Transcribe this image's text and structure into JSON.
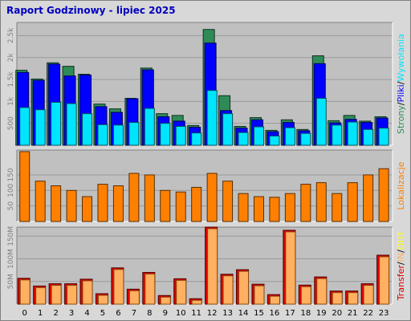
{
  "title": "Raport Godzinowy -  lipiec 2025",
  "colors": {
    "frame_bg": "#d8d8d8",
    "panel_bg": "#c0c0c0",
    "strony": "#2e8b57",
    "pliki": "#0000ff",
    "wywolania": "#00e5ff",
    "lokalizacje": "#ff8000",
    "transfer_in": "#ffb060",
    "transfer_out": "#ffff00",
    "transfer": "#e00000"
  },
  "chart_data": [
    {
      "type": "bar",
      "id": "requests",
      "categories": [
        "0",
        "1",
        "2",
        "3",
        "4",
        "5",
        "6",
        "7",
        "8",
        "9",
        "10",
        "11",
        "12",
        "13",
        "14",
        "15",
        "16",
        "17",
        "18",
        "19",
        "20",
        "21",
        "22",
        "23"
      ],
      "series": [
        {
          "name": "Strony",
          "values": [
            1710,
            1510,
            1880,
            1800,
            1620,
            940,
            830,
            1070,
            1760,
            720,
            680,
            450,
            2640,
            1130,
            430,
            630,
            340,
            580,
            360,
            2040,
            560,
            680,
            550,
            650
          ]
        },
        {
          "name": "Pliki",
          "values": [
            1660,
            1480,
            1850,
            1580,
            1600,
            880,
            750,
            1060,
            1720,
            650,
            550,
            410,
            2330,
            790,
            390,
            580,
            310,
            520,
            330,
            1860,
            510,
            590,
            520,
            620
          ]
        },
        {
          "name": "Wywołania",
          "values": [
            860,
            810,
            980,
            950,
            720,
            470,
            460,
            520,
            840,
            500,
            430,
            280,
            1250,
            720,
            290,
            420,
            210,
            400,
            270,
            1070,
            460,
            530,
            360,
            390
          ]
        }
      ],
      "y_ticks": [
        "500",
        "1k",
        "1.5k",
        "2k",
        "2.5k"
      ],
      "ylim": [
        0,
        2800
      ],
      "right_label": {
        "parts": [
          "Strony",
          "Pliki",
          "Wywołania"
        ],
        "separator": "/"
      }
    },
    {
      "type": "bar",
      "id": "locations",
      "categories": [
        "0",
        "1",
        "2",
        "3",
        "4",
        "5",
        "6",
        "7",
        "8",
        "9",
        "10",
        "11",
        "12",
        "13",
        "14",
        "15",
        "16",
        "17",
        "18",
        "19",
        "20",
        "21",
        "22",
        "23"
      ],
      "series": [
        {
          "name": "Lokalizacje",
          "values": [
            225,
            130,
            115,
            100,
            80,
            120,
            115,
            155,
            150,
            100,
            95,
            110,
            155,
            130,
            90,
            80,
            78,
            90,
            120,
            125,
            90,
            125,
            150,
            170
          ]
        }
      ],
      "y_ticks": [
        "50",
        "100",
        "150"
      ],
      "ylim": [
        0,
        230
      ],
      "right_label": {
        "parts": [
          "Lokalizacje"
        ],
        "separator": ""
      }
    },
    {
      "type": "bar",
      "id": "transfer",
      "categories": [
        "0",
        "1",
        "2",
        "3",
        "4",
        "5",
        "6",
        "7",
        "8",
        "9",
        "10",
        "11",
        "12",
        "13",
        "14",
        "15",
        "16",
        "17",
        "18",
        "19",
        "20",
        "21",
        "22",
        "23"
      ],
      "series": [
        {
          "name": "Transfer",
          "values": [
            57,
            40,
            45,
            45,
            55,
            23,
            80,
            33,
            70,
            19,
            56,
            12,
            170,
            66,
            76,
            44,
            21,
            163,
            42,
            60,
            29,
            29,
            45,
            108
          ]
        }
      ],
      "y_ticks": [
        "50M",
        "100M",
        "150M"
      ],
      "ylim": [
        0,
        170
      ],
      "right_label": {
        "parts": [
          "Transfer",
          "IN",
          "OUT"
        ],
        "separator": "/"
      }
    }
  ]
}
